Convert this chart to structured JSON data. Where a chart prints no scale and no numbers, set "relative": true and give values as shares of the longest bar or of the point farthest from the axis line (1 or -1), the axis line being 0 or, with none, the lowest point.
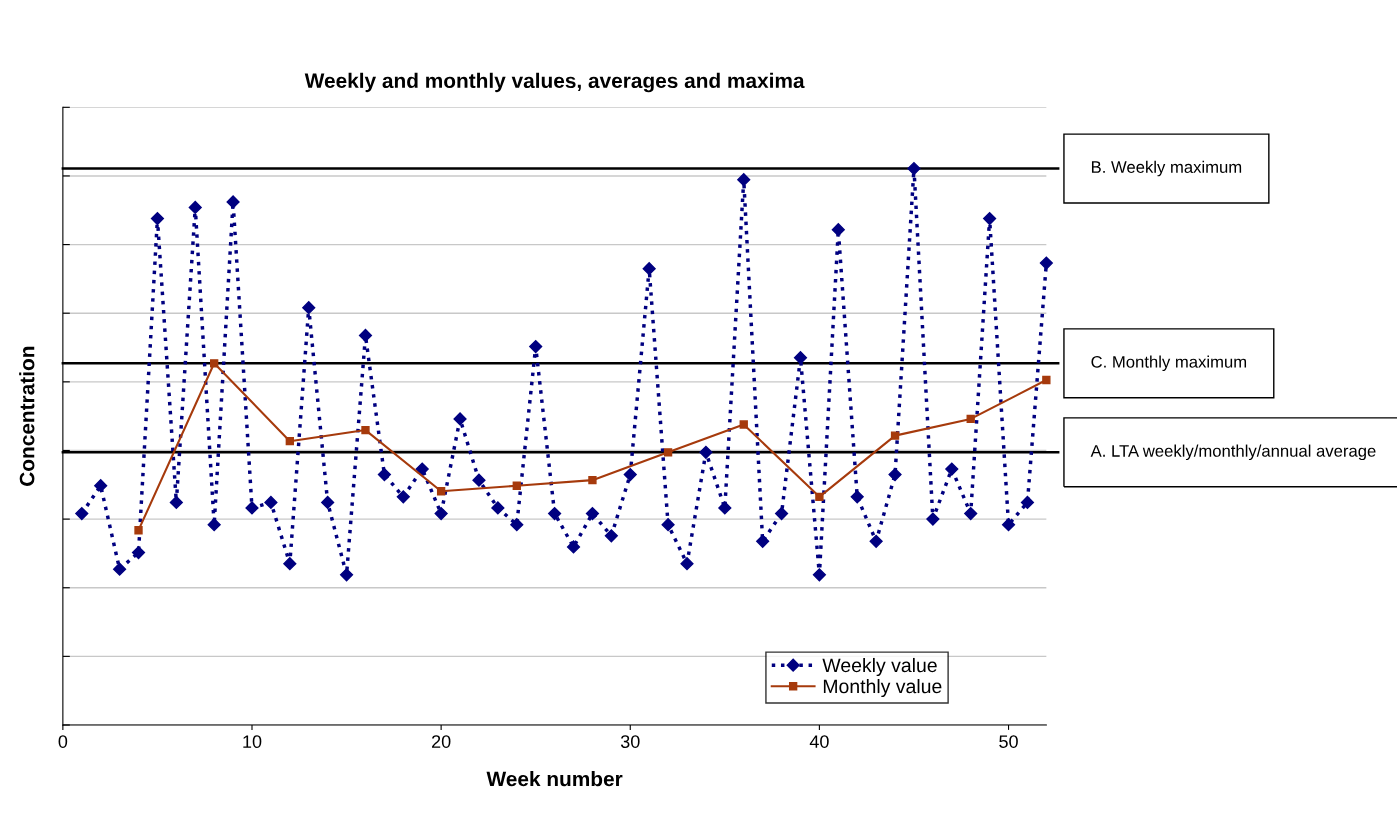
{
  "chart_data": {
    "type": "line",
    "title": "Weekly and monthly values, averages and maxima",
    "xlabel": "Week number",
    "ylabel": "Concentration",
    "relative": true,
    "xlim": [
      0,
      52
    ],
    "xticks": [
      0,
      10,
      20,
      30,
      40,
      50
    ],
    "grid": "y",
    "legend": "bottom right",
    "series": [
      {
        "name": "Weekly value",
        "color": "#000080",
        "marker": "diamond",
        "line_style": "dotted",
        "x": [
          1,
          2,
          3,
          4,
          5,
          6,
          7,
          8,
          9,
          10,
          11,
          12,
          13,
          14,
          15,
          16,
          17,
          18,
          19,
          20,
          21,
          22,
          23,
          24,
          25,
          26,
          27,
          28,
          29,
          30,
          31,
          32,
          33,
          34,
          35,
          36,
          37,
          38,
          39,
          40,
          41,
          42,
          43,
          44,
          45,
          46,
          47,
          48,
          49,
          50,
          51,
          52
        ],
        "values": [
          0.38,
          0.43,
          0.28,
          0.31,
          0.91,
          0.4,
          0.93,
          0.36,
          0.94,
          0.39,
          0.4,
          0.29,
          0.75,
          0.4,
          0.27,
          0.7,
          0.45,
          0.41,
          0.46,
          0.38,
          0.55,
          0.44,
          0.39,
          0.36,
          0.68,
          0.38,
          0.32,
          0.38,
          0.34,
          0.45,
          0.82,
          0.36,
          0.29,
          0.49,
          0.39,
          0.98,
          0.33,
          0.38,
          0.66,
          0.27,
          0.89,
          0.41,
          0.33,
          0.45,
          1.0,
          0.37,
          0.46,
          0.38,
          0.91,
          0.36,
          0.4,
          0.83
        ]
      },
      {
        "name": "Monthly value",
        "color": "#a63a0c",
        "marker": "square",
        "line_style": "solid",
        "x": [
          4,
          8,
          12,
          16,
          20,
          24,
          28,
          32,
          36,
          40,
          44,
          48,
          52
        ],
        "values": [
          0.35,
          0.65,
          0.51,
          0.53,
          0.42,
          0.43,
          0.44,
          0.49,
          0.54,
          0.41,
          0.52,
          0.55,
          0.62
        ]
      }
    ],
    "ref_lines": [
      {
        "axis": "y",
        "value": 1.0,
        "label": "B. Weekly maximum",
        "color": "#000000"
      },
      {
        "axis": "y",
        "value": 0.65,
        "label": "C. Monthly maximum",
        "color": "#000000"
      },
      {
        "axis": "y",
        "value": 0.49,
        "label": "A. LTA weekly/monthly/annual average",
        "color": "#000000"
      }
    ]
  }
}
